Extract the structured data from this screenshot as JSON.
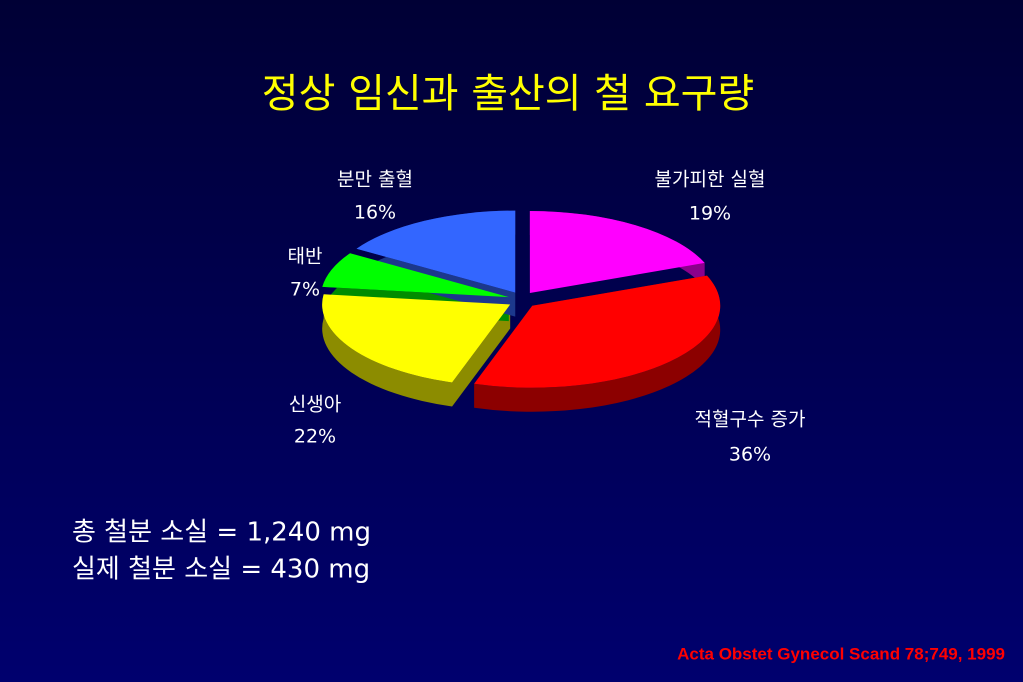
{
  "chart_data": {
    "type": "pie",
    "title": "정상 임신과 출산의 철 요구량",
    "categories": [
      "불가피한 실혈",
      "적혈구수 증가",
      "신생아",
      "태반",
      "분만 출혈"
    ],
    "values": [
      19,
      36,
      22,
      7,
      16
    ],
    "value_labels": [
      "19%",
      "36%",
      "22%",
      "7%",
      "16%"
    ],
    "colors": [
      "#ff00ff",
      "#ff0000",
      "#ffff00",
      "#00ff00",
      "#3366ff"
    ]
  },
  "notes": [
    "총 철분 소실 = 1,240 mg",
    "실제 철분 소실 = 430 mg"
  ],
  "source": "Acta Obstet Gynecol Scand 78;749, 1999"
}
